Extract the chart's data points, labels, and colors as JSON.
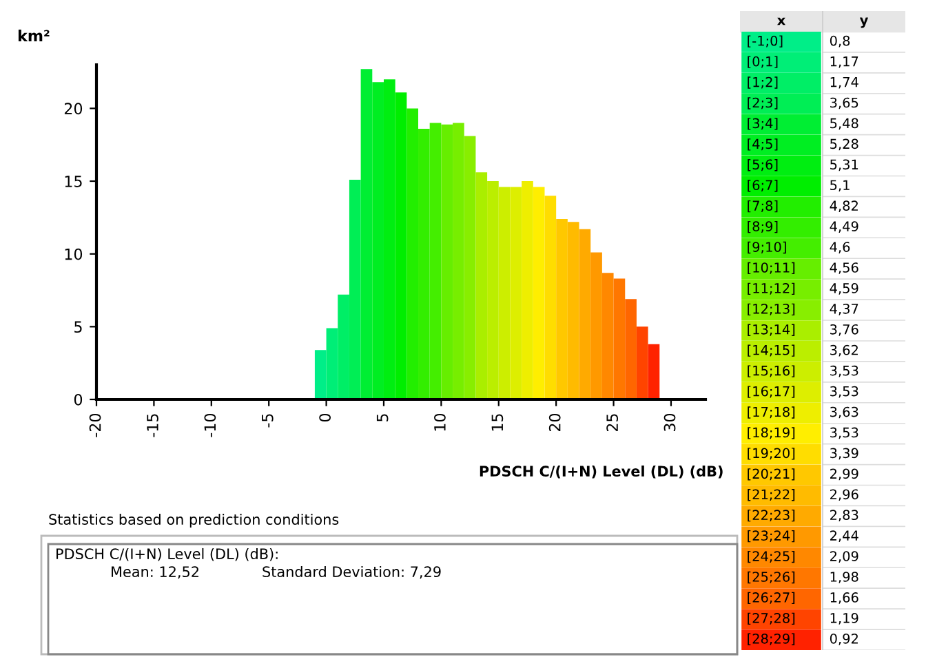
{
  "chart_data": [
    {
      "type": "histogram",
      "ylabel": "km²",
      "xlabel": "PDSCH C/(I+N) Level (DL) (dB)",
      "bins": [
        -1,
        0,
        1,
        2,
        3,
        4,
        5,
        6,
        7,
        8,
        9,
        10,
        11,
        12,
        13,
        14,
        15,
        16,
        17,
        18,
        19,
        20,
        21,
        22,
        23,
        24,
        25,
        26,
        27,
        28,
        29
      ],
      "values": [
        3.4,
        4.9,
        7.2,
        15.1,
        22.7,
        21.8,
        22.0,
        21.1,
        20.0,
        18.6,
        19.0,
        18.9,
        19.0,
        18.1,
        15.6,
        15.0,
        14.6,
        14.6,
        15.0,
        14.6,
        14.0,
        12.4,
        12.2,
        11.7,
        10.1,
        8.7,
        8.3,
        6.9,
        5.0,
        3.8
      ],
      "colors": [
        "#00ee88",
        "#00ee77",
        "#00ee66",
        "#00ee55",
        "#00ee33",
        "#00ee22",
        "#00ee11",
        "#00ee00",
        "#22ee00",
        "#33ee00",
        "#44ee00",
        "#66ee00",
        "#77ee00",
        "#88ee00",
        "#aaee00",
        "#bbee00",
        "#ccee00",
        "#ddee00",
        "#eeee00",
        "#ffee00",
        "#ffdd00",
        "#ffc800",
        "#ffbb00",
        "#ffaa00",
        "#ff9900",
        "#ff8800",
        "#ff7700",
        "#ff6600",
        "#ff4400",
        "#ff2200"
      ],
      "xlim": [
        -20,
        33
      ],
      "xticks": [
        -20,
        -15,
        -10,
        -5,
        0,
        5,
        10,
        15,
        20,
        25,
        30
      ],
      "ylim": [
        0,
        23
      ],
      "yticks": [
        0,
        5,
        10,
        15,
        20
      ],
      "grid": false,
      "annotations": [
        "Statistics based on prediction conditions",
        "PDSCH C/(I+N) Level (DL) (dB):",
        "Mean: 12,52",
        "Standard Deviation: 7,29"
      ]
    },
    {
      "type": "other",
      "xlabel": "x",
      "ylabel": "y",
      "categories": [
        "[-1;0]",
        "[0;1]",
        "[1;2]",
        "[2;3]",
        "[3;4]",
        "[4;5]",
        "[5;6]",
        "[6;7]",
        "[7;8]",
        "[8;9]",
        "[9;10]",
        "[10;11]",
        "[11;12]",
        "[12;13]",
        "[13;14]",
        "[14;15]",
        "[15;16]",
        "[16;17]",
        "[17;18]",
        "[18;19]",
        "[19;20]",
        "[20;21]",
        "[21;22]",
        "[22;23]",
        "[23;24]",
        "[24;25]",
        "[25;26]",
        "[26;27]",
        "[27;28]",
        "[28;29]"
      ],
      "value_labels": [
        "0,8",
        "1,17",
        "1,74",
        "3,65",
        "5,48",
        "5,28",
        "5,31",
        "5,1",
        "4,82",
        "4,49",
        "4,6",
        "4,56",
        "4,59",
        "4,37",
        "3,76",
        "3,62",
        "3,53",
        "3,53",
        "3,63",
        "3,53",
        "3,39",
        "2,99",
        "2,96",
        "2,83",
        "2,44",
        "2,09",
        "1,98",
        "1,66",
        "1,19",
        "0,92"
      ],
      "values": [
        0.8,
        1.17,
        1.74,
        3.65,
        5.48,
        5.28,
        5.31,
        5.1,
        4.82,
        4.49,
        4.6,
        4.56,
        4.59,
        4.37,
        3.76,
        3.62,
        3.53,
        3.53,
        3.63,
        3.53,
        3.39,
        2.99,
        2.96,
        2.83,
        2.44,
        2.09,
        1.98,
        1.66,
        1.19,
        0.92
      ],
      "colors": [
        "#00ee88",
        "#00ee77",
        "#00ee66",
        "#00ee55",
        "#00ee33",
        "#00ee22",
        "#00ee11",
        "#00ee00",
        "#22ee00",
        "#33ee00",
        "#44ee00",
        "#66ee00",
        "#77ee00",
        "#88ee00",
        "#aaee00",
        "#bbee00",
        "#ccee00",
        "#ddee00",
        "#eeee00",
        "#ffee00",
        "#ffdd00",
        "#ffc800",
        "#ffbb00",
        "#ffaa00",
        "#ff9900",
        "#ff8800",
        "#ff7700",
        "#ff6600",
        "#ff4400",
        "#ff2200"
      ]
    }
  ]
}
